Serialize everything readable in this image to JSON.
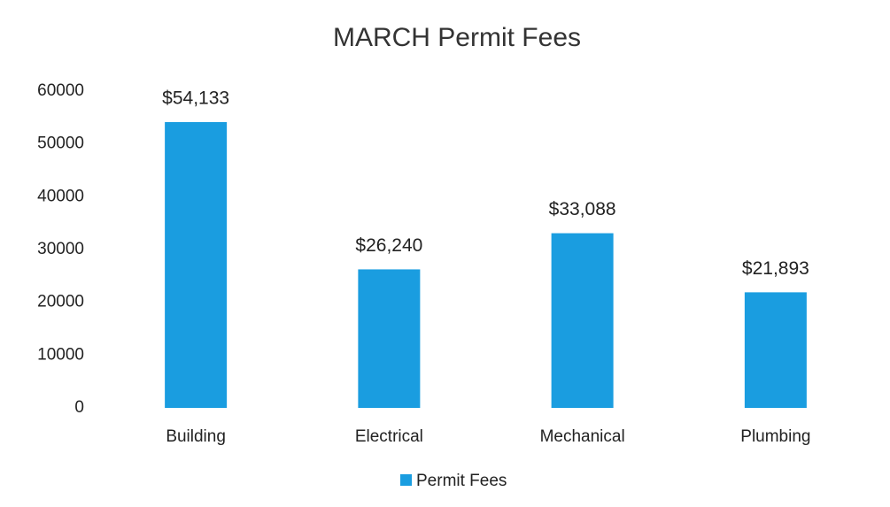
{
  "chart_data": {
    "type": "bar",
    "title": "MARCH Permit Fees",
    "categories": [
      "Building",
      "Electrical",
      "Mechanical",
      "Plumbing"
    ],
    "series": [
      {
        "name": "Permit Fees",
        "color": "#1a9de0",
        "values": [
          54133,
          26240,
          33088,
          21893
        ],
        "value_labels": [
          "$54,133",
          "$26,240",
          "$33,088",
          "$21,893"
        ]
      }
    ],
    "ylim": [
      0,
      60000
    ],
    "yticks": [
      0,
      10000,
      20000,
      30000,
      40000,
      50000,
      60000
    ],
    "grid": false,
    "legend": "bottom"
  }
}
